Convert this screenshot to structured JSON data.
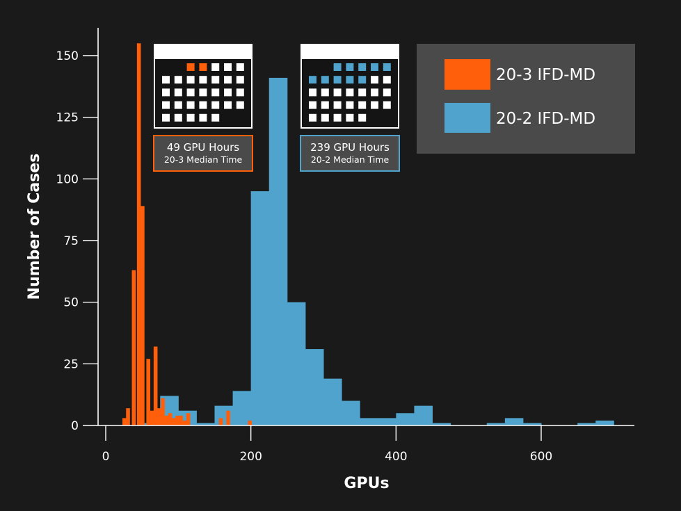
{
  "chart_data": {
    "type": "bar",
    "title": "",
    "xlabel": "GPUs",
    "ylabel": "Number of Cases",
    "xlim": [
      -10,
      730
    ],
    "ylim": [
      0,
      162
    ],
    "xticks": [
      0,
      200,
      400,
      600
    ],
    "yticks": [
      0,
      25,
      50,
      75,
      100,
      125,
      150
    ],
    "series": [
      {
        "name": "20-2 IFD-MD",
        "color": "#4fa3cc",
        "bin_width": 25,
        "bin_edges": [
          0,
          25,
          50,
          75,
          100,
          125,
          150,
          175,
          200,
          225,
          250,
          275,
          300,
          325,
          350,
          375,
          400,
          425,
          450,
          475,
          500,
          525,
          550,
          575,
          600,
          625,
          650,
          675,
          700
        ],
        "counts": [
          0,
          0,
          1,
          12,
          6,
          1,
          8,
          14,
          95,
          141,
          50,
          31,
          19,
          10,
          3,
          3,
          5,
          8,
          1,
          0,
          0,
          1,
          3,
          1,
          0,
          0,
          1,
          2
        ]
      },
      {
        "name": "20-3 IFD-MD",
        "color": "#ff5f0a",
        "bin_width": 5,
        "bins": [
          {
            "x": 23,
            "count": 3
          },
          {
            "x": 28,
            "count": 7
          },
          {
            "x": 36,
            "count": 63
          },
          {
            "x": 43,
            "count": 155
          },
          {
            "x": 48,
            "count": 89
          },
          {
            "x": 56,
            "count": 27
          },
          {
            "x": 61,
            "count": 6
          },
          {
            "x": 66,
            "count": 32
          },
          {
            "x": 71,
            "count": 7
          },
          {
            "x": 76,
            "count": 11
          },
          {
            "x": 81,
            "count": 4
          },
          {
            "x": 86,
            "count": 5
          },
          {
            "x": 91,
            "count": 3
          },
          {
            "x": 96,
            "count": 4
          },
          {
            "x": 101,
            "count": 4
          },
          {
            "x": 106,
            "count": 2
          },
          {
            "x": 111,
            "count": 5
          },
          {
            "x": 156,
            "count": 3
          },
          {
            "x": 166,
            "count": 6
          },
          {
            "x": 196,
            "count": 2
          }
        ]
      }
    ],
    "legend": {
      "position": "top-right",
      "entries": [
        {
          "label": "20-3 IFD-MD",
          "color": "#ff5f0a"
        },
        {
          "label": "20-2 IFD-MD",
          "color": "#4fa3cc"
        }
      ]
    },
    "annotations": [
      {
        "id": "median-20-3",
        "line1": "49 GPU Hours",
        "line2": "20-3 Median Time",
        "color": "#ff5f0a",
        "colored_cells": 2
      },
      {
        "id": "median-20-2",
        "line1": "239 GPU Hours",
        "line2": "20-2 Median Time",
        "color": "#4fa3cc",
        "colored_cells": 10
      }
    ]
  }
}
